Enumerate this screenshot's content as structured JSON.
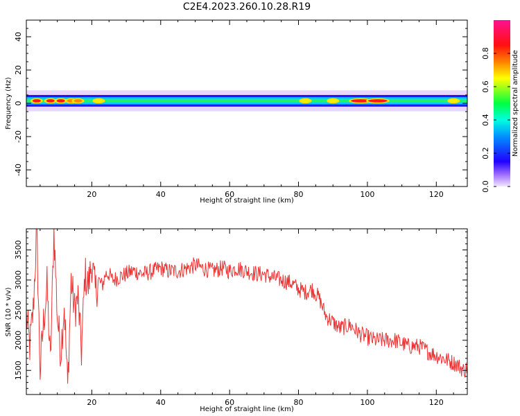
{
  "figure_title": "C2E4.2023.260.10.28.R19",
  "colorbar": {
    "label": "Normalized spectral amplitude",
    "ticks": [
      "0.0",
      "0.2",
      "0.4",
      "0.6",
      "0.8"
    ]
  },
  "chart_data": [
    {
      "type": "heatmap",
      "title": "",
      "xlabel": "Height of straight line (km)",
      "ylabel": "Frequency (Hz)",
      "xlim": [
        1,
        129
      ],
      "ylim": [
        -50,
        50
      ],
      "xticks": [
        20,
        40,
        60,
        80,
        100,
        120
      ],
      "yticks": [
        40,
        20,
        0,
        -20,
        -40
      ],
      "colorbar_range": [
        0,
        1
      ],
      "description_band": {
        "center_hz": 1.5,
        "half_width_hz": 3.5,
        "hotspots": [
          {
            "x": 4,
            "value": 0.97
          },
          {
            "x": 8,
            "value": 0.95
          },
          {
            "x": 11,
            "value": 0.95
          },
          {
            "x": 14,
            "value": 0.9
          },
          {
            "x": 16,
            "value": 0.9
          },
          {
            "x": 22,
            "value": 0.75
          },
          {
            "x": 82,
            "value": 0.8
          },
          {
            "x": 90,
            "value": 0.75
          },
          {
            "x": 98,
            "value": 0.98
          },
          {
            "x": 103,
            "value": 0.98
          },
          {
            "x": 125,
            "value": 0.75
          }
        ]
      }
    },
    {
      "type": "line",
      "title": "",
      "xlabel": "Height of straight line (km)",
      "ylabel": "SNR (10 * v/v)",
      "xlim": [
        1,
        129
      ],
      "ylim": [
        1100,
        3850
      ],
      "xticks": [
        20,
        40,
        60,
        80,
        100,
        120
      ],
      "yticks": [
        3500,
        3000,
        2500,
        2000,
        1500
      ],
      "color": "#ee3333",
      "series": [
        {
          "x": [
            1,
            2,
            3,
            4,
            5,
            6,
            7,
            8,
            9,
            10,
            11,
            12,
            13,
            14,
            15,
            16,
            17,
            18,
            19,
            20,
            21,
            22,
            23,
            24,
            25,
            26,
            28,
            30,
            32,
            35,
            38,
            40,
            42,
            45,
            48,
            50,
            52,
            55,
            58,
            60,
            62,
            65,
            68,
            70,
            72,
            75,
            78,
            80,
            82,
            84,
            86,
            88,
            90,
            92,
            95,
            98,
            100,
            102,
            105,
            108,
            110,
            112,
            115,
            118,
            120,
            122,
            124,
            126,
            128,
            129
          ],
          "y": [
            2400,
            1900,
            2500,
            3850,
            1500,
            2300,
            2900,
            1600,
            3850,
            2400,
            1800,
            2600,
            1200,
            3000,
            2500,
            2700,
            1800,
            3100,
            2900,
            3300,
            2800,
            3000,
            2900,
            3100,
            3100,
            3000,
            3050,
            3100,
            3150,
            3100,
            3150,
            3200,
            3150,
            3150,
            3200,
            3250,
            3200,
            3150,
            3200,
            3150,
            3200,
            3150,
            3100,
            3100,
            3050,
            3000,
            2950,
            2850,
            2800,
            2850,
            2700,
            2400,
            2300,
            2200,
            2250,
            2100,
            2050,
            2000,
            2000,
            2000,
            1950,
            1900,
            1900,
            1800,
            1750,
            1700,
            1650,
            1600,
            1500,
            1550
          ]
        }
      ]
    }
  ]
}
